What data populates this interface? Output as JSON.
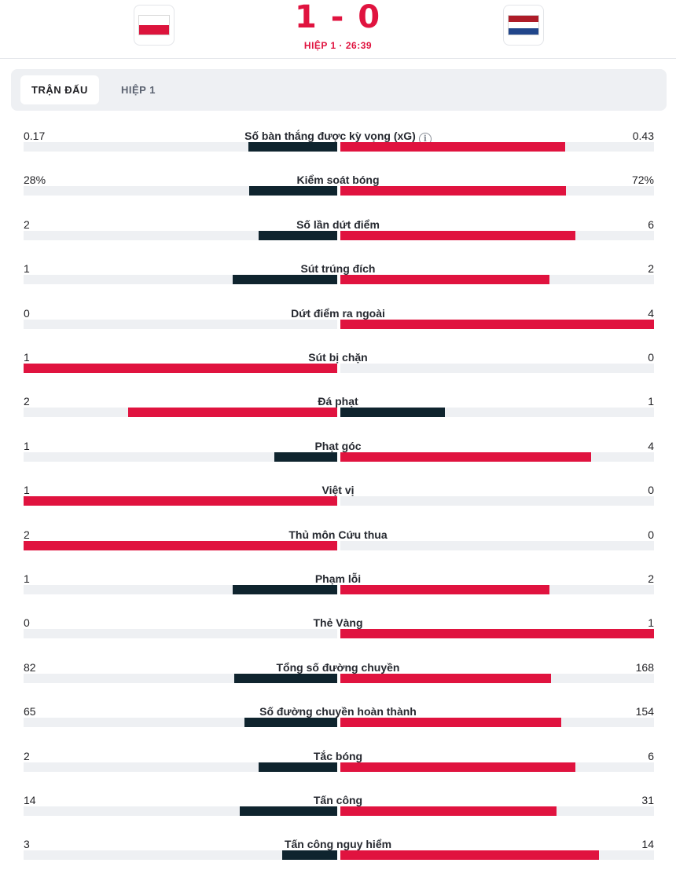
{
  "match": {
    "score": "1 - 0",
    "period": "HIỆP 1 · 26:39",
    "home_flag": {
      "name": "Poland",
      "stripes": [
        "#ffffff",
        "#dc143c"
      ]
    },
    "away_flag": {
      "name": "Netherlands",
      "stripes": [
        "#ae1c28",
        "#ffffff",
        "#21468b"
      ]
    }
  },
  "tabs": [
    {
      "label": "TRẬN ĐẤU",
      "active": true
    },
    {
      "label": "HIỆP 1",
      "active": false
    }
  ],
  "colors": {
    "accent": "#e0133f",
    "dark": "#0f242e",
    "track": "#eef0f3"
  },
  "stats": [
    {
      "label": "Số bàn thắng được kỳ vọng (xG)",
      "home": "0.17",
      "away": "0.43",
      "home_num": 0.17,
      "away_num": 0.43,
      "info": "i"
    },
    {
      "label": "Kiểm soát bóng",
      "home": "28%",
      "away": "72%",
      "home_num": 28,
      "away_num": 72
    },
    {
      "label": "Số lần dứt điểm",
      "home": "2",
      "away": "6",
      "home_num": 2,
      "away_num": 6
    },
    {
      "label": "Sút trúng đích",
      "home": "1",
      "away": "2",
      "home_num": 1,
      "away_num": 2
    },
    {
      "label": "Dứt điểm ra ngoài",
      "home": "0",
      "away": "4",
      "home_num": 0,
      "away_num": 4
    },
    {
      "label": "Sút bị chặn",
      "home": "1",
      "away": "0",
      "home_num": 1,
      "away_num": 0
    },
    {
      "label": "Đá phạt",
      "home": "2",
      "away": "1",
      "home_num": 2,
      "away_num": 1
    },
    {
      "label": "Phạt góc",
      "home": "1",
      "away": "4",
      "home_num": 1,
      "away_num": 4
    },
    {
      "label": "Việt vị",
      "home": "1",
      "away": "0",
      "home_num": 1,
      "away_num": 0
    },
    {
      "label": "Thủ môn Cứu thua",
      "home": "2",
      "away": "0",
      "home_num": 2,
      "away_num": 0
    },
    {
      "label": "Phạm lỗi",
      "home": "1",
      "away": "2",
      "home_num": 1,
      "away_num": 2
    },
    {
      "label": "Thẻ Vàng",
      "home": "0",
      "away": "1",
      "home_num": 0,
      "away_num": 1
    },
    {
      "label": "Tổng số đường chuyền",
      "home": "82",
      "away": "168",
      "home_num": 82,
      "away_num": 168
    },
    {
      "label": "Số đường chuyền hoàn thành",
      "home": "65",
      "away": "154",
      "home_num": 65,
      "away_num": 154
    },
    {
      "label": "Tắc bóng",
      "home": "2",
      "away": "6",
      "home_num": 2,
      "away_num": 6
    },
    {
      "label": "Tấn công",
      "home": "14",
      "away": "31",
      "home_num": 14,
      "away_num": 31
    },
    {
      "label": "Tấn công nguy hiểm",
      "home": "3",
      "away": "14",
      "home_num": 3,
      "away_num": 14
    }
  ]
}
